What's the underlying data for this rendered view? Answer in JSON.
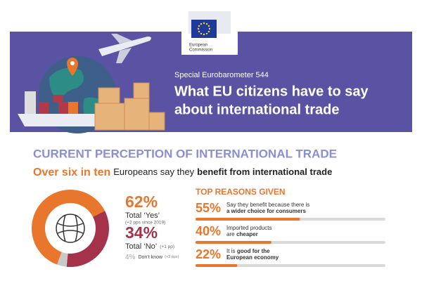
{
  "header": {
    "logo": [
      "European",
      "Commission"
    ],
    "kicker": "Special Eurobarometer 544",
    "title": [
      "What EU citizens have to say",
      "about international trade"
    ]
  },
  "section": {
    "title": "CURRENT PERCEPTION OF INTERNATIONAL TRADE",
    "headline": [
      {
        "text": "Over six in ten",
        "style": "highlight"
      },
      {
        "text": "Europeans say they",
        "style": "normal"
      },
      {
        "text": "benefit from international trade",
        "style": "bold"
      }
    ]
  },
  "perception": [
    {
      "value": 62,
      "label": "62%",
      "caption": "Total ‘Yes’",
      "note": "(+2 pps since 2019)",
      "color": "#e8762d"
    },
    {
      "value": 34,
      "label": "34%",
      "caption": "Total ‘No’",
      "note": "(+1 pp)",
      "color": "#a3324a"
    },
    {
      "value": 4,
      "label": "4%",
      "caption": "Don’t know",
      "note": "(+3 pps)",
      "color": "#c9c9c9"
    }
  ],
  "reasons": {
    "title": "TOP REASONS GIVEN",
    "color": "#e8762d",
    "items": [
      {
        "value": 55,
        "label": "55%",
        "lines": [
          [
            {
              "text": "Say they benefit because there is",
              "bold": false
            }
          ],
          [
            {
              "text": "a wider choice for consumers",
              "bold": true
            }
          ]
        ]
      },
      {
        "value": 40,
        "label": "40%",
        "lines": [
          [
            {
              "text": "Imported products",
              "bold": false
            }
          ],
          [
            {
              "text": "are",
              "bold": false
            },
            {
              "text": "cheaper",
              "bold": true
            }
          ]
        ]
      },
      {
        "value": 22,
        "label": "22%",
        "lines": [
          [
            {
              "text": "It is",
              "bold": false
            },
            {
              "text": "good for the",
              "bold": true
            }
          ],
          [
            {
              "text": "European economy",
              "bold": true
            }
          ]
        ]
      }
    ]
  }
}
